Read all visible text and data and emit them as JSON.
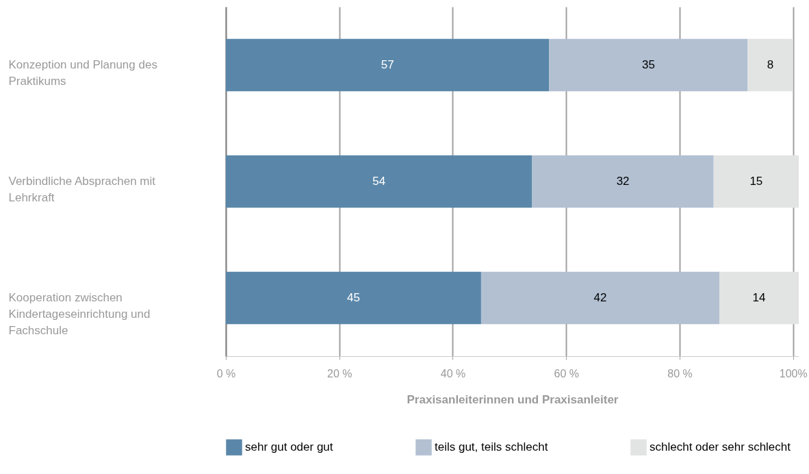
{
  "chart_data": {
    "type": "bar",
    "orientation": "horizontal",
    "stacked": true,
    "categories": [
      "Konzeption und Planung des Praktikums",
      "Verbindliche Absprachen mit Lehrkraft",
      "Kooperation zwischen Kindertageseinrichtung und Fachschule"
    ],
    "series": [
      {
        "name": "sehr gut oder gut",
        "color": "#5a87a9",
        "values": [
          57,
          54,
          45
        ]
      },
      {
        "name": "teils gut, teils schlecht",
        "color": "#b2c0d2",
        "values": [
          35,
          32,
          42
        ]
      },
      {
        "name": "schlecht oder sehr schlecht",
        "color": "#e2e3e3",
        "values": [
          8,
          15,
          14
        ]
      }
    ],
    "xlabel": "Praxisanleiterinnen und Praxisanleiter",
    "xlim": [
      0,
      101
    ],
    "xticks": [
      {
        "value": 0,
        "label": "0 %"
      },
      {
        "value": 20,
        "label": "20 %"
      },
      {
        "value": 40,
        "label": "40 %"
      },
      {
        "value": 60,
        "label": "60 %"
      },
      {
        "value": 80,
        "label": "80 %"
      },
      {
        "value": 100,
        "label": "100%"
      }
    ],
    "grid": "x",
    "legend": "bottom",
    "data_labels": true
  }
}
